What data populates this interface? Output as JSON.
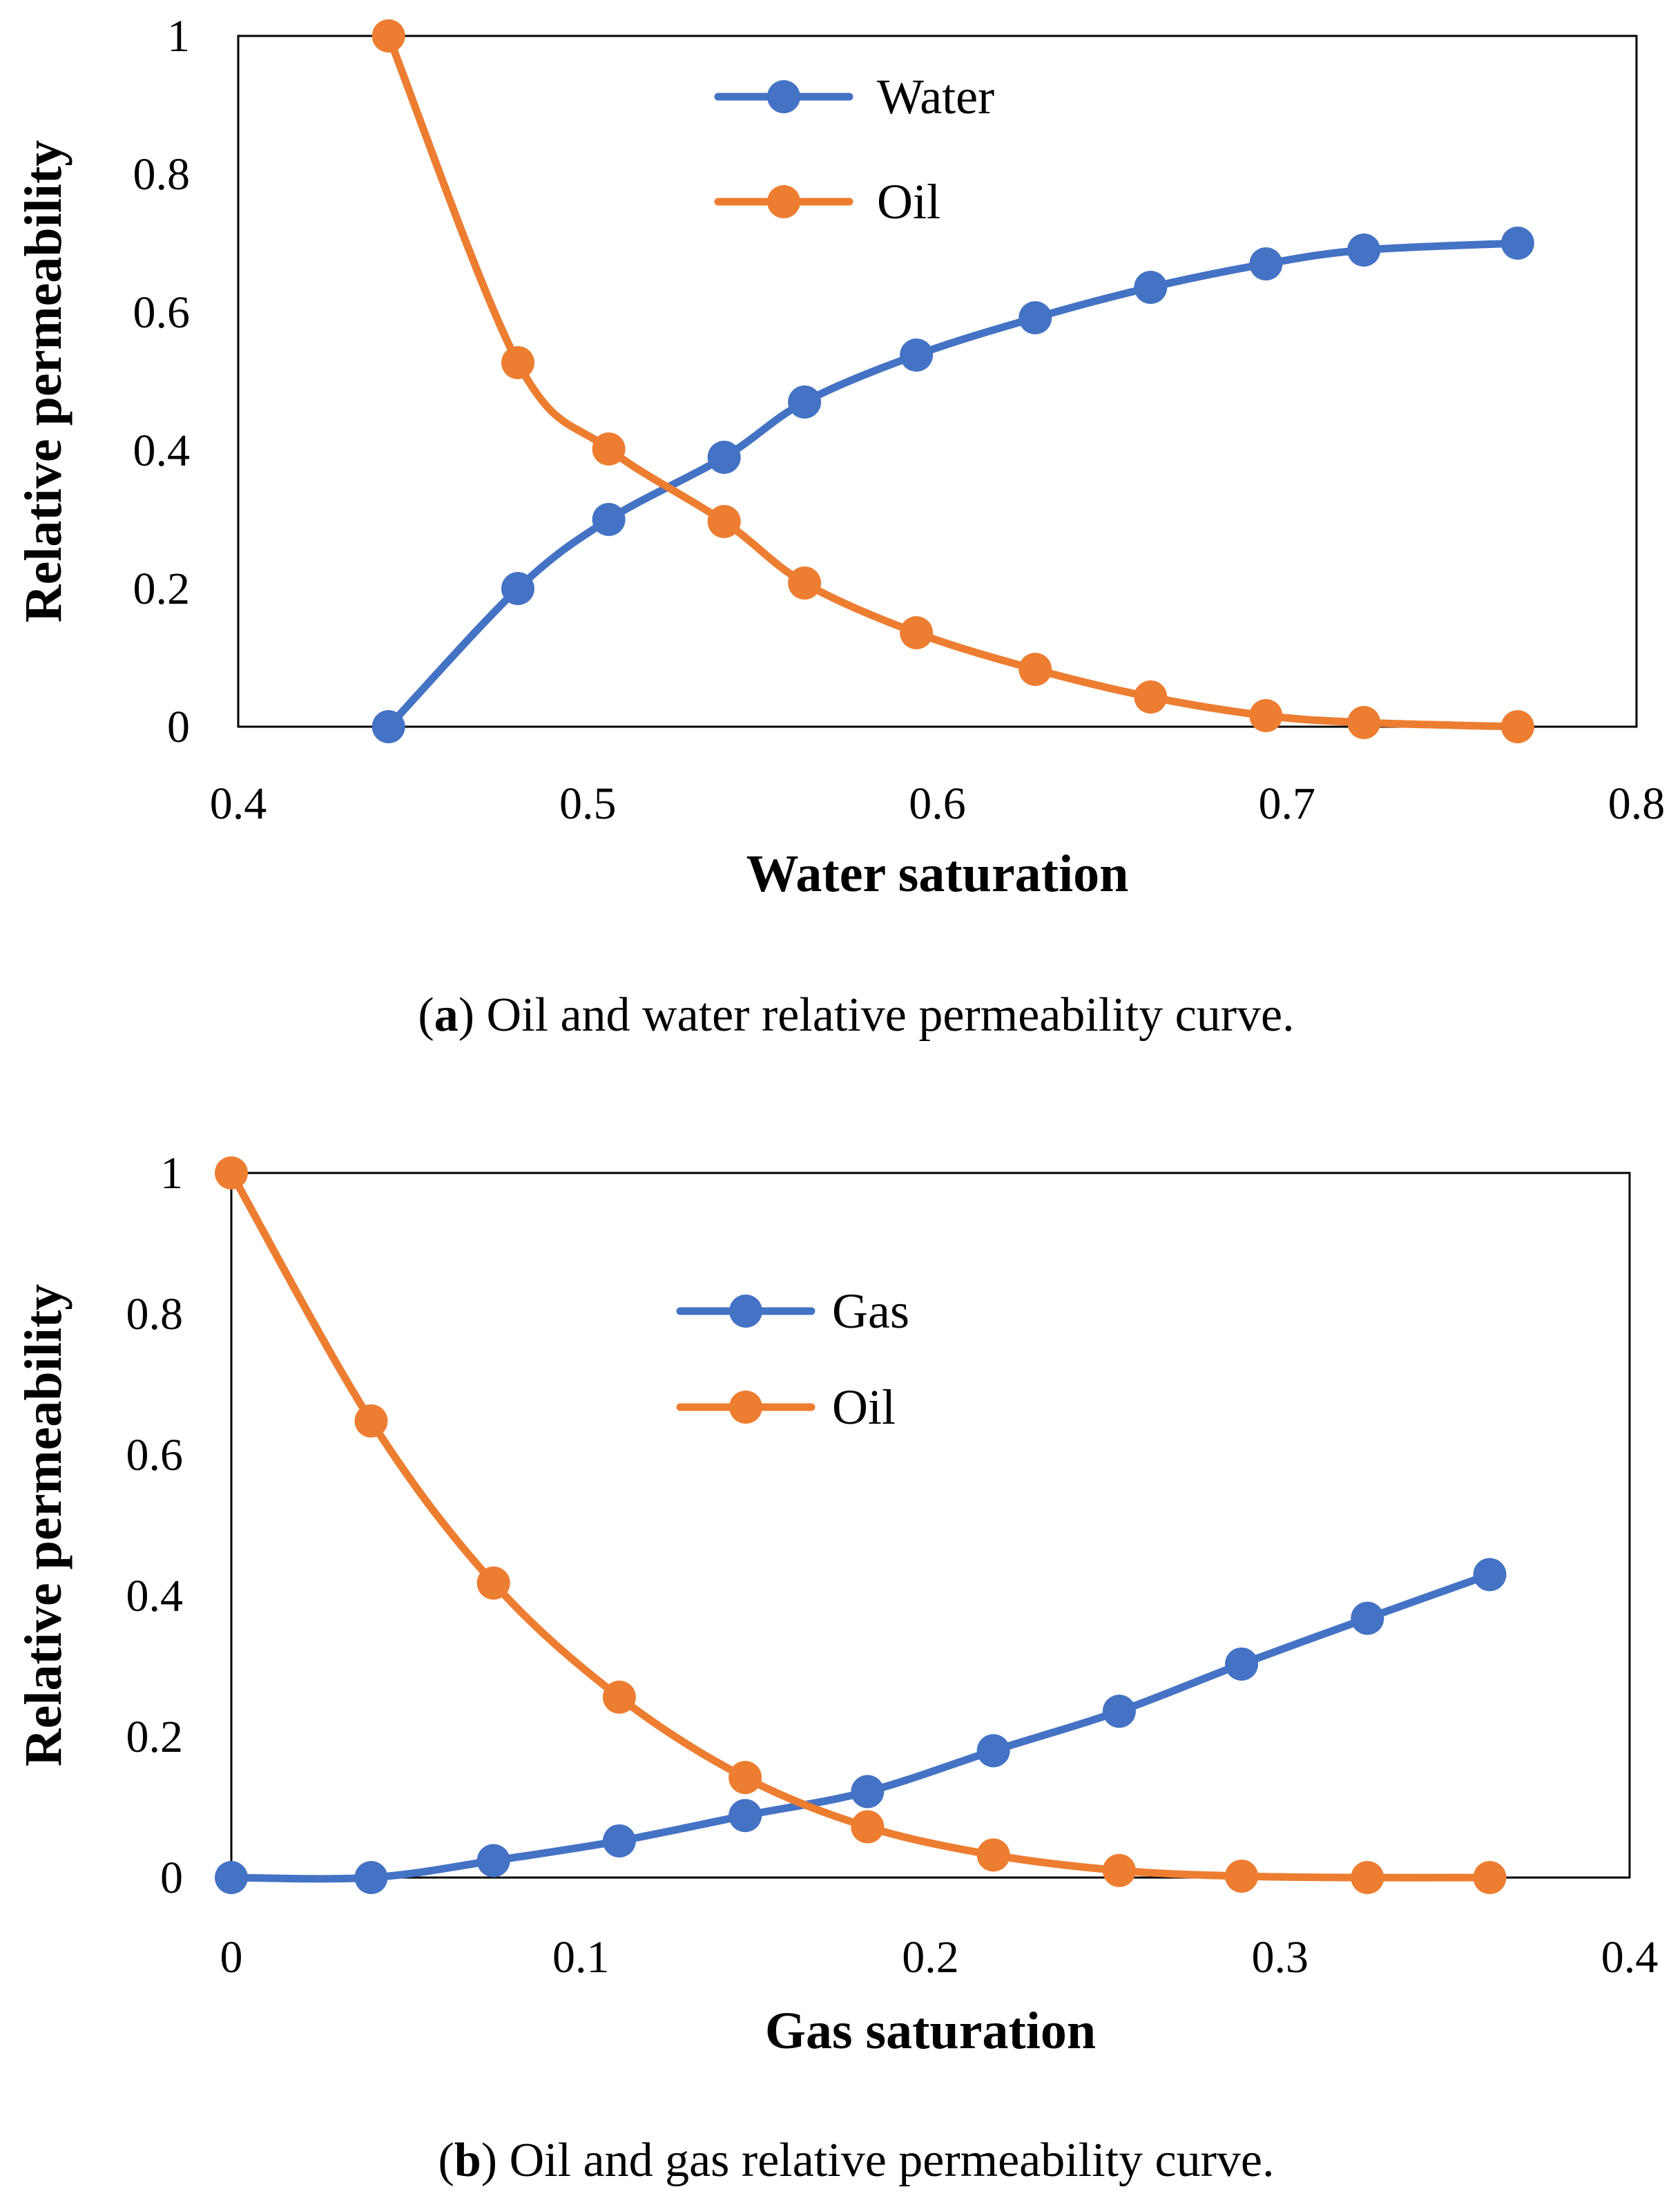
{
  "chart_data": [
    {
      "type": "line",
      "xlabel": "Water saturation",
      "ylabel": "Relative permeability",
      "xlim": [
        0.4,
        0.8
      ],
      "ylim": [
        0,
        1
      ],
      "x_ticks": [
        "0.4",
        "0.5",
        "0.6",
        "0.7",
        "0.8"
      ],
      "y_ticks": [
        "0",
        "0.2",
        "0.4",
        "0.6",
        "0.8",
        "1"
      ],
      "legend_position": "top-center",
      "caption_letter": "a",
      "caption_text": ") Oil and water relative permeability curve.",
      "series": [
        {
          "name": "Water",
          "color": "#4472C4",
          "x": [
            0.443,
            0.48,
            0.506,
            0.539,
            0.562,
            0.594,
            0.628,
            0.661,
            0.694,
            0.722,
            0.766
          ],
          "values": [
            0.0,
            0.2,
            0.3,
            0.39,
            0.47,
            0.538,
            0.592,
            0.636,
            0.67,
            0.69,
            0.7
          ]
        },
        {
          "name": "Oil",
          "color": "#ED7D31",
          "x": [
            0.443,
            0.48,
            0.506,
            0.539,
            0.562,
            0.594,
            0.628,
            0.661,
            0.694,
            0.722,
            0.766
          ],
          "values": [
            1.0,
            0.527,
            0.402,
            0.297,
            0.208,
            0.136,
            0.083,
            0.043,
            0.016,
            0.006,
            0.0
          ]
        }
      ]
    },
    {
      "type": "line",
      "xlabel": "Gas saturation",
      "ylabel": "Relative permeability",
      "xlim": [
        0,
        0.4
      ],
      "ylim": [
        0,
        1
      ],
      "x_ticks": [
        "0",
        "0.1",
        "0.2",
        "0.3",
        "0.4"
      ],
      "y_ticks": [
        "0",
        "0.2",
        "0.4",
        "0.6",
        "0.8",
        "1"
      ],
      "legend_position": "top-center",
      "caption_letter": "b",
      "caption_text": ") Oil and gas relative permeability curve.",
      "series": [
        {
          "name": "Gas",
          "color": "#4472C4",
          "x": [
            0.0,
            0.04,
            0.075,
            0.111,
            0.147,
            0.182,
            0.218,
            0.254,
            0.289,
            0.325,
            0.36
          ],
          "values": [
            0.0,
            0.0,
            0.024,
            0.052,
            0.088,
            0.122,
            0.18,
            0.236,
            0.303,
            0.368,
            0.43
          ]
        },
        {
          "name": "Oil",
          "color": "#ED7D31",
          "x": [
            0.0,
            0.04,
            0.075,
            0.111,
            0.147,
            0.182,
            0.218,
            0.254,
            0.289,
            0.325,
            0.36
          ],
          "values": [
            1.0,
            0.648,
            0.418,
            0.256,
            0.142,
            0.072,
            0.032,
            0.01,
            0.002,
            0.0,
            0.0
          ]
        }
      ]
    }
  ]
}
